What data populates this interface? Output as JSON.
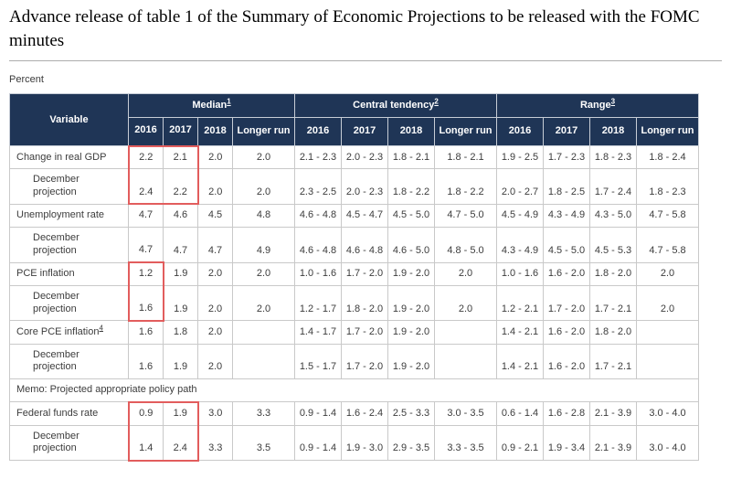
{
  "page": {
    "title": "Advance release of table 1 of the Summary of Economic Projections to be released with the FOMC minutes",
    "unit_label": "Percent"
  },
  "colors": {
    "header_bg": "#1f3556",
    "highlight_red": "#e25d5d",
    "cell_border": "#c9c9c9",
    "text": "#3c3c3c"
  },
  "table": {
    "header": {
      "variable": "Variable",
      "groups": [
        {
          "label": "Median",
          "footnote": "1"
        },
        {
          "label": "Central tendency",
          "footnote": "2"
        },
        {
          "label": "Range",
          "footnote": "3"
        }
      ],
      "years": [
        "2016",
        "2017",
        "2018",
        "Longer run"
      ]
    },
    "highlights": [
      {
        "rows": [
          0,
          1
        ],
        "cols": [
          0,
          1
        ]
      },
      {
        "rows": [
          4,
          5
        ],
        "cols": [
          0
        ]
      },
      {
        "rows": [
          9,
          10
        ],
        "cols": [
          0,
          1
        ]
      }
    ],
    "rows": [
      {
        "type": "data",
        "label": "Change in real GDP",
        "indent": false,
        "median": [
          "2.2",
          "2.1",
          "2.0",
          "2.0"
        ],
        "central": [
          "2.1 - 2.3",
          "2.0 - 2.3",
          "1.8 - 2.1",
          "1.8 - 2.1"
        ],
        "range": [
          "1.9 - 2.5",
          "1.7 - 2.3",
          "1.8 - 2.3",
          "1.8 - 2.4"
        ]
      },
      {
        "type": "data",
        "label": "December projection",
        "indent": true,
        "median": [
          "2.4",
          "2.2",
          "2.0",
          "2.0"
        ],
        "central": [
          "2.3 - 2.5",
          "2.0 - 2.3",
          "1.8 - 2.2",
          "1.8 - 2.2"
        ],
        "range": [
          "2.0 - 2.7",
          "1.8 - 2.5",
          "1.7 - 2.4",
          "1.8 - 2.3"
        ]
      },
      {
        "type": "data",
        "label": "Unemployment rate",
        "indent": false,
        "median": [
          "4.7",
          "4.6",
          "4.5",
          "4.8"
        ],
        "central": [
          "4.6 - 4.8",
          "4.5 - 4.7",
          "4.5 - 5.0",
          "4.7 - 5.0"
        ],
        "range": [
          "4.5 - 4.9",
          "4.3 - 4.9",
          "4.3 - 5.0",
          "4.7 - 5.8"
        ]
      },
      {
        "type": "data",
        "label": "December projection",
        "indent": true,
        "median": [
          "4.7",
          "4.7",
          "4.7",
          "4.9"
        ],
        "central": [
          "4.6 - 4.8",
          "4.6 - 4.8",
          "4.6 - 5.0",
          "4.8 - 5.0"
        ],
        "range": [
          "4.3 - 4.9",
          "4.5 - 5.0",
          "4.5 - 5.3",
          "4.7 - 5.8"
        ]
      },
      {
        "type": "data",
        "label": "PCE inflation",
        "indent": false,
        "median": [
          "1.2",
          "1.9",
          "2.0",
          "2.0"
        ],
        "central": [
          "1.0 - 1.6",
          "1.7 - 2.0",
          "1.9 - 2.0",
          "2.0"
        ],
        "range": [
          "1.0 - 1.6",
          "1.6 - 2.0",
          "1.8 - 2.0",
          "2.0"
        ]
      },
      {
        "type": "data",
        "label": "December projection",
        "indent": true,
        "median": [
          "1.6",
          "1.9",
          "2.0",
          "2.0"
        ],
        "central": [
          "1.2 - 1.7",
          "1.8 - 2.0",
          "1.9 - 2.0",
          "2.0"
        ],
        "range": [
          "1.2 - 2.1",
          "1.7 - 2.0",
          "1.7 - 2.1",
          "2.0"
        ]
      },
      {
        "type": "data",
        "label": "Core PCE inflation",
        "footnote": "4",
        "indent": false,
        "median": [
          "1.6",
          "1.8",
          "2.0",
          ""
        ],
        "central": [
          "1.4 - 1.7",
          "1.7 - 2.0",
          "1.9 - 2.0",
          ""
        ],
        "range": [
          "1.4 - 2.1",
          "1.6 - 2.0",
          "1.8 - 2.0",
          ""
        ]
      },
      {
        "type": "data",
        "label": "December projection",
        "indent": true,
        "median": [
          "1.6",
          "1.9",
          "2.0",
          ""
        ],
        "central": [
          "1.5 - 1.7",
          "1.7 - 2.0",
          "1.9 - 2.0",
          ""
        ],
        "range": [
          "1.4 - 2.1",
          "1.6 - 2.0",
          "1.7 - 2.1",
          ""
        ]
      },
      {
        "type": "memo",
        "label": "Memo: Projected appropriate policy path"
      },
      {
        "type": "data",
        "label": "Federal funds rate",
        "indent": false,
        "median": [
          "0.9",
          "1.9",
          "3.0",
          "3.3"
        ],
        "central": [
          "0.9 - 1.4",
          "1.6 - 2.4",
          "2.5 - 3.3",
          "3.0 - 3.5"
        ],
        "range": [
          "0.6 - 1.4",
          "1.6 - 2.8",
          "2.1 - 3.9",
          "3.0 - 4.0"
        ]
      },
      {
        "type": "data",
        "label": "December projection",
        "indent": true,
        "median": [
          "1.4",
          "2.4",
          "3.3",
          "3.5"
        ],
        "central": [
          "0.9 - 1.4",
          "1.9 - 3.0",
          "2.9 - 3.5",
          "3.3 - 3.5"
        ],
        "range": [
          "0.9 - 2.1",
          "1.9 - 3.4",
          "2.1 - 3.9",
          "3.0 - 4.0"
        ]
      }
    ]
  }
}
